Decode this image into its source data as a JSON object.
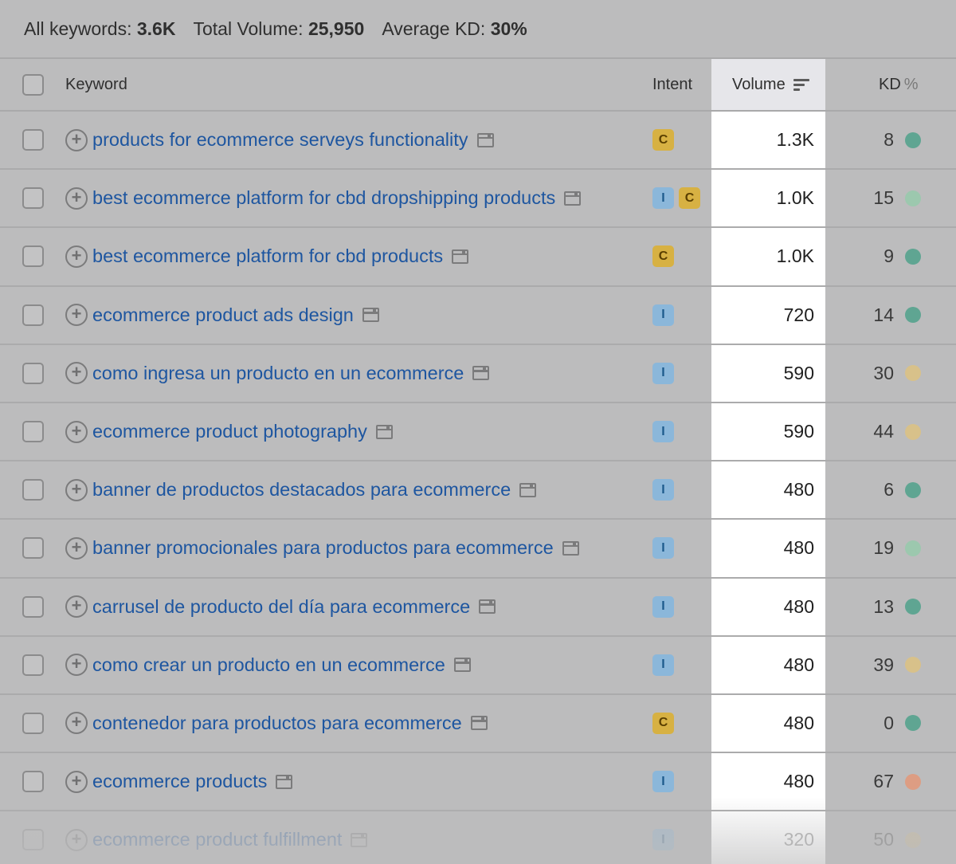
{
  "summary": {
    "all_keywords_label": "All keywords:",
    "all_keywords_value": "3.6K",
    "total_volume_label": "Total Volume:",
    "total_volume_value": "25,950",
    "avg_kd_label": "Average KD:",
    "avg_kd_value": "30%"
  },
  "columns": {
    "keyword": "Keyword",
    "intent": "Intent",
    "volume": "Volume",
    "kd_main": "KD",
    "kd_unit": "%"
  },
  "colors": {
    "link": "#1e56a0",
    "intent_I": "#8bb7da",
    "intent_C": "#d7b143",
    "kd_very_easy": "#5fa592",
    "kd_easy": "#9cc8ae",
    "kd_possible": "#d8c18a",
    "kd_difficult": "#dd9d83"
  },
  "rows": [
    {
      "keyword": "products for ecommerce serveys functionality",
      "intent": [
        "C"
      ],
      "volume": "1.3K",
      "kd": "8",
      "kd_level": "very-easy"
    },
    {
      "keyword": "best ecommerce platform for cbd dropshipping products",
      "intent": [
        "I",
        "C"
      ],
      "volume": "1.0K",
      "kd": "15",
      "kd_level": "easy"
    },
    {
      "keyword": "best ecommerce platform for cbd products",
      "intent": [
        "C"
      ],
      "volume": "1.0K",
      "kd": "9",
      "kd_level": "very-easy"
    },
    {
      "keyword": "ecommerce product ads design",
      "intent": [
        "I"
      ],
      "volume": "720",
      "kd": "14",
      "kd_level": "very-easy"
    },
    {
      "keyword": "como ingresa un producto en un ecommerce",
      "intent": [
        "I"
      ],
      "volume": "590",
      "kd": "30",
      "kd_level": "possible"
    },
    {
      "keyword": "ecommerce product photography",
      "intent": [
        "I"
      ],
      "volume": "590",
      "kd": "44",
      "kd_level": "possible"
    },
    {
      "keyword": "banner de productos destacados para ecommerce",
      "intent": [
        "I"
      ],
      "volume": "480",
      "kd": "6",
      "kd_level": "very-easy"
    },
    {
      "keyword": "banner promocionales para productos para ecommerce",
      "intent": [
        "I"
      ],
      "volume": "480",
      "kd": "19",
      "kd_level": "easy"
    },
    {
      "keyword": "carrusel de producto del día para ecommerce",
      "intent": [
        "I"
      ],
      "volume": "480",
      "kd": "13",
      "kd_level": "very-easy"
    },
    {
      "keyword": "como crear un producto en un ecommerce",
      "intent": [
        "I"
      ],
      "volume": "480",
      "kd": "39",
      "kd_level": "possible"
    },
    {
      "keyword": "contenedor para productos para ecommerce",
      "intent": [
        "C"
      ],
      "volume": "480",
      "kd": "0",
      "kd_level": "very-easy"
    },
    {
      "keyword": "ecommerce products",
      "intent": [
        "I"
      ],
      "volume": "480",
      "kd": "67",
      "kd_level": "difficult"
    },
    {
      "keyword": "ecommerce product fulfillment",
      "intent": [
        "I"
      ],
      "volume": "320",
      "kd": "50",
      "kd_level": "possible",
      "faded": true
    }
  ]
}
